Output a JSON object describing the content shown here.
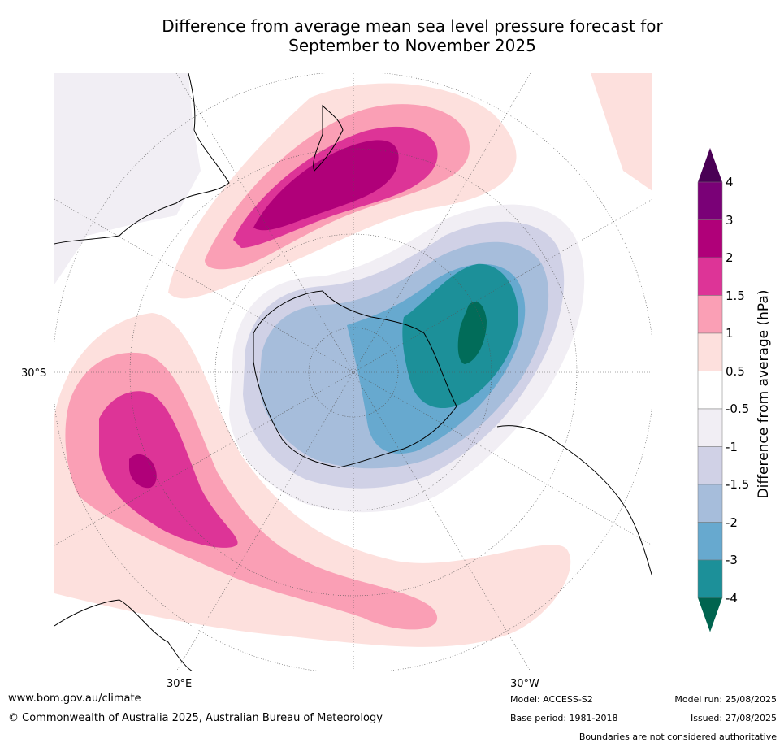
{
  "title": {
    "line1": "Difference from average mean sea level pressure forecast for",
    "line2": "September to November 2025"
  },
  "map": {
    "projection": "south polar stereographic",
    "lat_label": "30°S",
    "lon_labels": [
      "30°E",
      "30°W"
    ]
  },
  "colorbar": {
    "label": "Difference from average (hPa)",
    "ticks": [
      "4",
      "3",
      "2",
      "1.5",
      "1",
      "0.5",
      "-0.5",
      "-1",
      "-1.5",
      "-2",
      "-3",
      "-4"
    ],
    "colors": [
      "#7a0177",
      "#b00079",
      "#dd3497",
      "#fa9fb5",
      "#fde0dd",
      "#ffffff",
      "#f1eef4",
      "#d0d1e6",
      "#a6bddb",
      "#67a9cf",
      "#1c9099",
      "#016c59"
    ],
    "over_color": "#4a0055",
    "under_color": "#00644f"
  },
  "footer": {
    "url": "www.bom.gov.au/climate",
    "copyright": "© Commonwealth of Australia 2025, Australian Bureau of Meteorology",
    "model": "Model: ACCESS-S2",
    "base_period": "Base period: 1981-2018",
    "model_run": "Model run: 25/08/2025",
    "issued": "Issued: 27/08/2025",
    "disclaimer": "Boundaries are not considered authoritative"
  }
}
